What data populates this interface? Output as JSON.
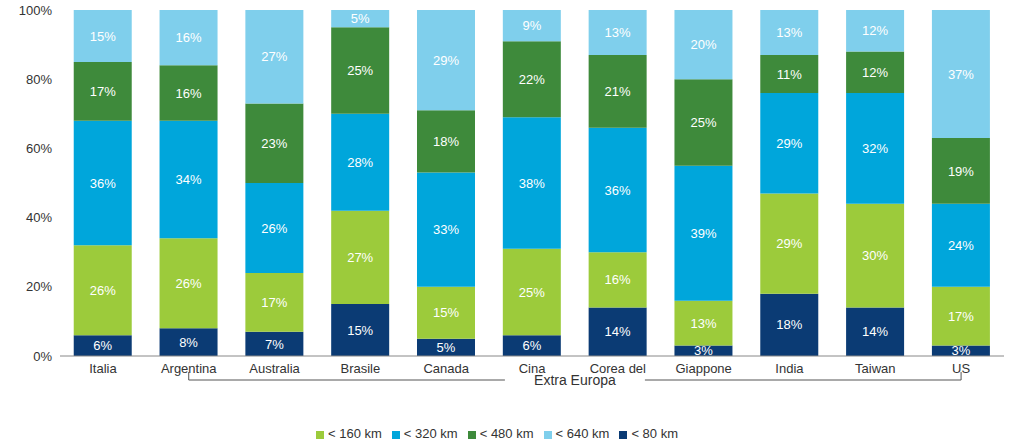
{
  "chart_data": {
    "type": "bar",
    "stacked": true,
    "data_labels": true,
    "grid": false,
    "legend": "bottom",
    "annotation": "Extra Europa",
    "categories": [
      "Italia",
      "Argentina",
      "Australia",
      "Brasile",
      "Canada",
      "Cina",
      "Corea del",
      "Giappone",
      "India",
      "Taiwan",
      "US"
    ],
    "ylim": [
      0,
      100
    ],
    "yticks": [
      {
        "value": 0,
        "label": "0%"
      },
      {
        "value": 20,
        "label": "20%"
      },
      {
        "value": 40,
        "label": "40%"
      },
      {
        "value": 60,
        "label": "60%"
      },
      {
        "value": 80,
        "label": "80%"
      },
      {
        "value": 100,
        "label": "100%"
      }
    ],
    "series": [
      {
        "name": "< 80 km",
        "color": "#0b3b74",
        "values": [
          6,
          8,
          7,
          15,
          5,
          6,
          14,
          3,
          18,
          14,
          3
        ],
        "value_labels": [
          "6%",
          "8%",
          "7%",
          "15%",
          "5%",
          "6%",
          "14%",
          "3%",
          "18%",
          "14%",
          "3%"
        ]
      },
      {
        "name": "< 160 km",
        "color": "#9ccb3b",
        "values": [
          26,
          26,
          17,
          27,
          15,
          25,
          16,
          13,
          29,
          30,
          17
        ],
        "value_labels": [
          "26%",
          "26%",
          "17%",
          "27%",
          "15%",
          "25%",
          "16%",
          "13%",
          "29%",
          "30%",
          "17%"
        ]
      },
      {
        "name": "< 320 km",
        "color": "#00a6db",
        "values": [
          36,
          34,
          26,
          28,
          33,
          38,
          36,
          39,
          29,
          32,
          24
        ],
        "value_labels": [
          "36%",
          "34%",
          "26%",
          "28%",
          "33%",
          "38%",
          "36%",
          "39%",
          "29%",
          "32%",
          "24%"
        ]
      },
      {
        "name": "< 480 km",
        "color": "#3e8a3b",
        "values": [
          17,
          16,
          23,
          25,
          18,
          22,
          21,
          25,
          11,
          12,
          19
        ],
        "value_labels": [
          "17%",
          "16%",
          "23%",
          "25%",
          "18%",
          "22%",
          "21%",
          "25%",
          "11%",
          "12%",
          "19%"
        ]
      },
      {
        "name": "< 640 km",
        "color": "#7fcfec",
        "values": [
          15,
          16,
          27,
          5,
          29,
          9,
          13,
          20,
          13,
          12,
          37
        ],
        "value_labels": [
          "15%",
          "16%",
          "27%",
          "5%",
          "29%",
          "9%",
          "13%",
          "20%",
          "13%",
          "12%",
          "37%"
        ]
      }
    ]
  }
}
